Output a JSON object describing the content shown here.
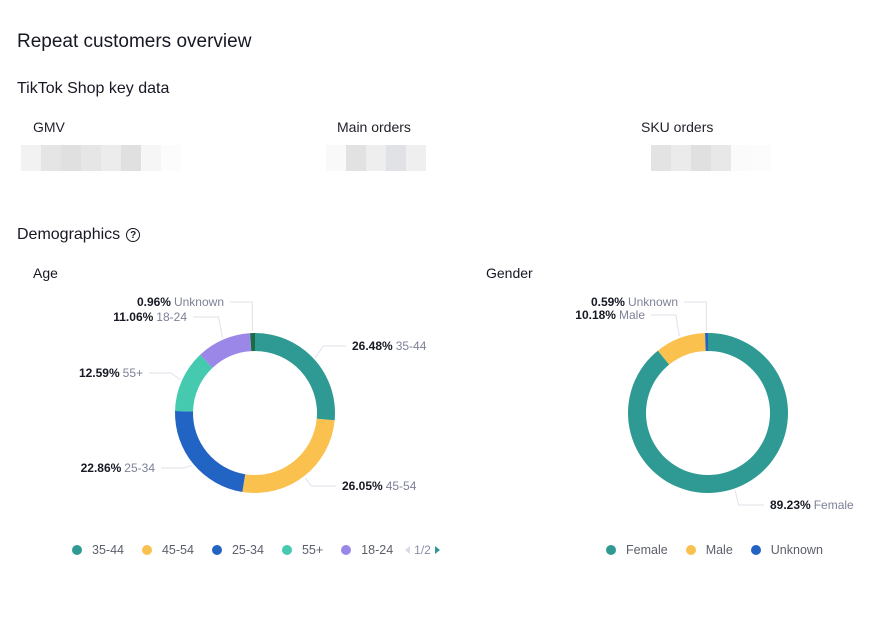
{
  "page": {
    "title": "Repeat customers overview",
    "key_data_title": "TikTok Shop key data",
    "metrics": [
      {
        "label": "GMV"
      },
      {
        "label": "Main orders"
      },
      {
        "label": "SKU orders"
      }
    ],
    "demographics_title": "Demographics",
    "help_icon": "question-circle-icon"
  },
  "chart_data": [
    {
      "type": "pie",
      "variant": "donut",
      "title": "Age",
      "categories": [
        "35-44",
        "45-54",
        "25-34",
        "55+",
        "18-24",
        "Unknown"
      ],
      "values": [
        26.48,
        26.05,
        22.86,
        12.59,
        11.06,
        0.96
      ],
      "value_labels": [
        "26.48%",
        "26.05%",
        "22.86%",
        "12.59%",
        "11.06%",
        "0.96%"
      ],
      "colors": [
        "#2f9a94",
        "#fbc14f",
        "#2264c4",
        "#45cab0",
        "#9b87e8",
        "#1a6b46"
      ],
      "legend": {
        "position": "bottom",
        "visible_entries": [
          "35-44",
          "45-54",
          "25-34",
          "55+",
          "18-24"
        ],
        "pager": "1/2"
      }
    },
    {
      "type": "pie",
      "variant": "donut",
      "title": "Gender",
      "categories": [
        "Female",
        "Male",
        "Unknown"
      ],
      "values": [
        89.23,
        10.18,
        0.59
      ],
      "value_labels": [
        "89.23%",
        "10.18%",
        "0.59%"
      ],
      "colors": [
        "#2f9a94",
        "#fbc14f",
        "#2264c4"
      ],
      "legend": {
        "position": "bottom",
        "visible_entries": [
          "Female",
          "Male",
          "Unknown"
        ]
      }
    }
  ]
}
